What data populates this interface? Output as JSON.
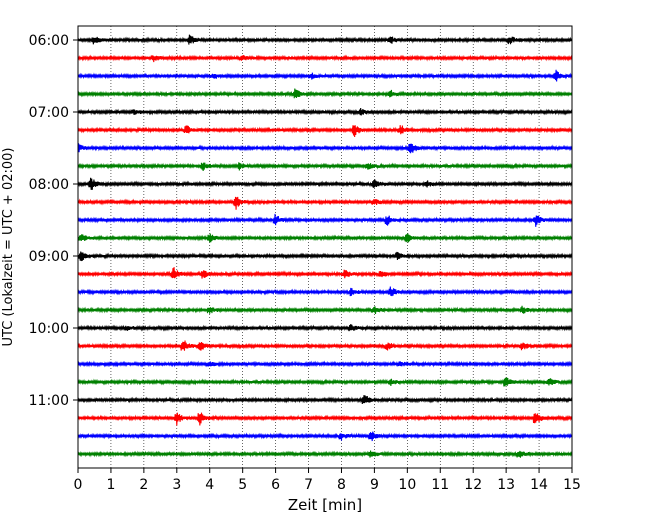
{
  "chart_data": {
    "type": "line",
    "title": "",
    "xlabel": "Zeit  [min]",
    "ylabel": "UTC (Lokalzeit = UTC + 02:00)",
    "xlim": [
      0,
      15
    ],
    "x_ticks": [
      "0",
      "1",
      "2",
      "3",
      "4",
      "5",
      "6",
      "7",
      "8",
      "9",
      "10",
      "11",
      "12",
      "13",
      "14",
      "15"
    ],
    "y_tick_labels": [
      "06:00",
      "07:00",
      "08:00",
      "09:00",
      "10:00",
      "11:00"
    ],
    "y_tick_rows": [
      0,
      4,
      8,
      12,
      16,
      20
    ],
    "row_interval_minutes": 15,
    "grid": "vertical dotted",
    "colors": [
      "#000000",
      "#ff0000",
      "#0000ff",
      "#008000"
    ],
    "trace_rows": [
      {
        "start": "06:00",
        "color": "#000000",
        "events": [
          [
            0.5,
            0.6
          ],
          [
            3.4,
            0.7
          ],
          [
            9.5,
            0.5
          ],
          [
            13.1,
            0.6
          ]
        ]
      },
      {
        "start": "06:15",
        "color": "#ff0000",
        "events": [
          [
            2.3,
            0.4
          ],
          [
            5.0,
            0.3
          ]
        ]
      },
      {
        "start": "06:30",
        "color": "#0000ff",
        "events": [
          [
            4.1,
            0.4
          ],
          [
            7.1,
            0.4
          ],
          [
            14.5,
            0.8
          ]
        ]
      },
      {
        "start": "06:45",
        "color": "#008000",
        "events": [
          [
            6.6,
            0.7
          ],
          [
            9.5,
            0.5
          ]
        ]
      },
      {
        "start": "07:00",
        "color": "#000000",
        "events": [
          [
            1.7,
            0.3
          ],
          [
            8.6,
            0.4
          ]
        ]
      },
      {
        "start": "07:15",
        "color": "#ff0000",
        "events": [
          [
            3.3,
            0.6
          ],
          [
            8.4,
            0.9
          ],
          [
            9.8,
            0.7
          ]
        ]
      },
      {
        "start": "07:30",
        "color": "#0000ff",
        "events": [
          [
            0.0,
            0.6
          ],
          [
            10.1,
            0.9
          ]
        ]
      },
      {
        "start": "07:45",
        "color": "#008000",
        "events": [
          [
            3.8,
            0.5
          ],
          [
            4.9,
            0.5
          ],
          [
            8.8,
            0.5
          ]
        ]
      },
      {
        "start": "08:00",
        "color": "#000000",
        "events": [
          [
            0.4,
            0.9
          ],
          [
            9.0,
            0.6
          ],
          [
            10.6,
            0.4
          ]
        ]
      },
      {
        "start": "08:15",
        "color": "#ff0000",
        "events": [
          [
            4.8,
            0.9
          ],
          [
            9.0,
            0.5
          ]
        ]
      },
      {
        "start": "08:30",
        "color": "#0000ff",
        "events": [
          [
            6.0,
            0.8
          ],
          [
            9.4,
            0.7
          ],
          [
            13.9,
            0.8
          ]
        ]
      },
      {
        "start": "08:45",
        "color": "#008000",
        "events": [
          [
            0.1,
            0.6
          ],
          [
            4.0,
            0.6
          ],
          [
            10.0,
            0.6
          ]
        ]
      },
      {
        "start": "09:00",
        "color": "#000000",
        "events": [
          [
            0.1,
            0.8
          ],
          [
            9.7,
            0.5
          ]
        ]
      },
      {
        "start": "09:15",
        "color": "#ff0000",
        "events": [
          [
            2.9,
            0.9
          ],
          [
            3.8,
            0.6
          ],
          [
            8.1,
            0.5
          ],
          [
            9.2,
            0.5
          ]
        ]
      },
      {
        "start": "09:30",
        "color": "#0000ff",
        "events": [
          [
            8.3,
            0.6
          ],
          [
            9.5,
            0.7
          ]
        ]
      },
      {
        "start": "09:45",
        "color": "#008000",
        "events": [
          [
            4.0,
            0.5
          ],
          [
            9.0,
            0.5
          ],
          [
            13.5,
            0.5
          ]
        ]
      },
      {
        "start": "10:00",
        "color": "#000000",
        "events": [
          [
            1.5,
            0.3
          ],
          [
            8.3,
            0.5
          ]
        ]
      },
      {
        "start": "10:15",
        "color": "#ff0000",
        "events": [
          [
            3.2,
            0.9
          ],
          [
            3.7,
            0.7
          ],
          [
            9.4,
            0.5
          ],
          [
            13.5,
            0.6
          ]
        ]
      },
      {
        "start": "10:30",
        "color": "#0000ff",
        "events": [
          [
            4.0,
            0.3
          ],
          [
            9.8,
            0.3
          ]
        ]
      },
      {
        "start": "10:45",
        "color": "#008000",
        "events": [
          [
            9.5,
            0.4
          ],
          [
            13.0,
            0.8
          ],
          [
            14.3,
            0.6
          ]
        ]
      },
      {
        "start": "11:00",
        "color": "#000000",
        "events": [
          [
            8.7,
            0.7
          ]
        ]
      },
      {
        "start": "11:15",
        "color": "#ff0000",
        "events": [
          [
            3.0,
            0.9
          ],
          [
            3.7,
            1.0
          ],
          [
            13.9,
            0.9
          ]
        ]
      },
      {
        "start": "11:30",
        "color": "#0000ff",
        "events": [
          [
            8.0,
            0.5
          ],
          [
            8.9,
            0.7
          ]
        ]
      },
      {
        "start": "11:45",
        "color": "#008000",
        "events": [
          [
            8.9,
            0.5
          ],
          [
            13.4,
            0.6
          ]
        ]
      }
    ]
  }
}
